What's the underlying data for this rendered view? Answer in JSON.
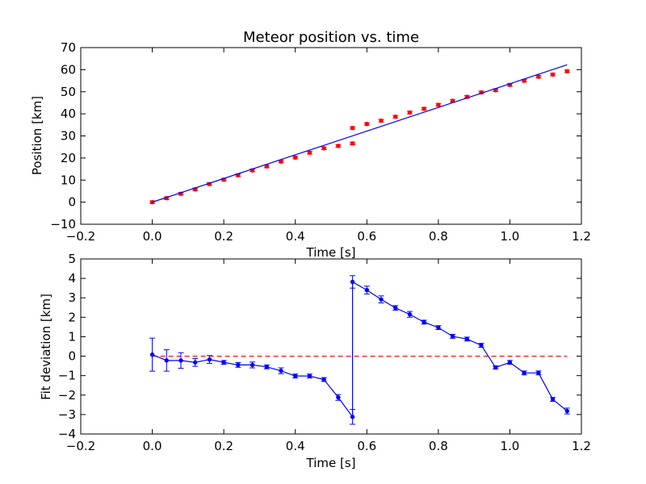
{
  "chart_data": [
    {
      "type": "scatter",
      "title": "Meteor position vs. time",
      "xlabel": "Time [s]",
      "ylabel": "Position [km]",
      "xlim": [
        -0.2,
        1.2
      ],
      "ylim": [
        -10,
        70
      ],
      "xticks": [
        -0.2,
        0.0,
        0.2,
        0.4,
        0.6,
        0.8,
        1.0,
        1.2
      ],
      "xtick_labels": [
        "−0.2",
        "0.0",
        "0.2",
        "0.4",
        "0.6",
        "0.8",
        "1.0",
        "1.2"
      ],
      "yticks": [
        -10,
        0,
        10,
        20,
        30,
        40,
        50,
        60,
        70
      ],
      "ytick_labels": [
        "−10",
        "0",
        "10",
        "20",
        "30",
        "40",
        "50",
        "60",
        "70"
      ],
      "grid": false,
      "series": [
        {
          "style": "markers-with-error-bars",
          "color": "#ff0000",
          "x": [
            0.0,
            0.04,
            0.08,
            0.12,
            0.16,
            0.2,
            0.24,
            0.28,
            0.32,
            0.36,
            0.4,
            0.44,
            0.48,
            0.52,
            0.56,
            0.56,
            0.6,
            0.64,
            0.68,
            0.72,
            0.76,
            0.8,
            0.84,
            0.88,
            0.92,
            0.96,
            1.0,
            1.04,
            1.08,
            1.12,
            1.16
          ],
          "y": [
            0.0,
            1.8,
            3.8,
            5.8,
            8.2,
            10.2,
            12.2,
            14.4,
            16.2,
            18.4,
            20.2,
            22.4,
            24.4,
            25.5,
            26.6,
            33.6,
            35.4,
            36.9,
            38.7,
            40.6,
            42.3,
            44.1,
            45.9,
            47.7,
            49.7,
            50.7,
            53.1,
            55.0,
            56.8,
            57.8,
            59.3
          ],
          "yerr": 0.6
        },
        {
          "style": "line",
          "color": "#0000ff",
          "x": [
            0.0,
            1.16
          ],
          "y": [
            0.0,
            62.2
          ]
        }
      ]
    },
    {
      "type": "line",
      "xlabel": "Time [s]",
      "ylabel": "Fit deviation [km]",
      "xlim": [
        -0.2,
        1.2
      ],
      "ylim": [
        -4,
        5
      ],
      "xticks": [
        -0.2,
        0.0,
        0.2,
        0.4,
        0.6,
        0.8,
        1.0,
        1.2
      ],
      "xtick_labels": [
        "−0.2",
        "0.0",
        "0.2",
        "0.4",
        "0.6",
        "0.8",
        "1.0",
        "1.2"
      ],
      "yticks": [
        -4,
        -3,
        -2,
        -1,
        0,
        1,
        2,
        3,
        4,
        5
      ],
      "ytick_labels": [
        "−4",
        "−3",
        "−2",
        "−1",
        "0",
        "1",
        "2",
        "3",
        "4",
        "5"
      ],
      "grid": false,
      "reference_line": {
        "y": 0,
        "x_range": [
          0.0,
          1.16
        ],
        "color": "#ff0000",
        "style": "dashed"
      },
      "series": [
        {
          "style": "line-with-markers-and-error-bars",
          "color": "#0000ff",
          "x": [
            0.0,
            0.04,
            0.08,
            0.12,
            0.16,
            0.2,
            0.24,
            0.28,
            0.32,
            0.36,
            0.4,
            0.44,
            0.48,
            0.52,
            0.56,
            0.56,
            0.6,
            0.64,
            0.68,
            0.72,
            0.76,
            0.8,
            0.84,
            0.88,
            0.92,
            0.96,
            1.0,
            1.04,
            1.08,
            1.12,
            1.16
          ],
          "y": [
            0.08,
            -0.22,
            -0.22,
            -0.32,
            -0.17,
            -0.32,
            -0.45,
            -0.45,
            -0.55,
            -0.75,
            -1.02,
            -1.02,
            -1.2,
            -2.12,
            -3.12,
            3.82,
            3.4,
            2.92,
            2.48,
            2.15,
            1.75,
            1.47,
            1.02,
            0.88,
            0.56,
            -0.58,
            -0.32,
            -0.86,
            -0.86,
            -2.22,
            -2.82
          ],
          "yerr": [
            0.85,
            0.55,
            0.4,
            0.2,
            0.2,
            0.1,
            0.12,
            0.15,
            0.1,
            0.15,
            0.1,
            0.1,
            0.1,
            0.15,
            0.38,
            0.32,
            0.2,
            0.18,
            0.12,
            0.15,
            0.1,
            0.1,
            0.1,
            0.1,
            0.1,
            0.08,
            0.1,
            0.1,
            0.1,
            0.1,
            0.15
          ]
        }
      ]
    }
  ]
}
